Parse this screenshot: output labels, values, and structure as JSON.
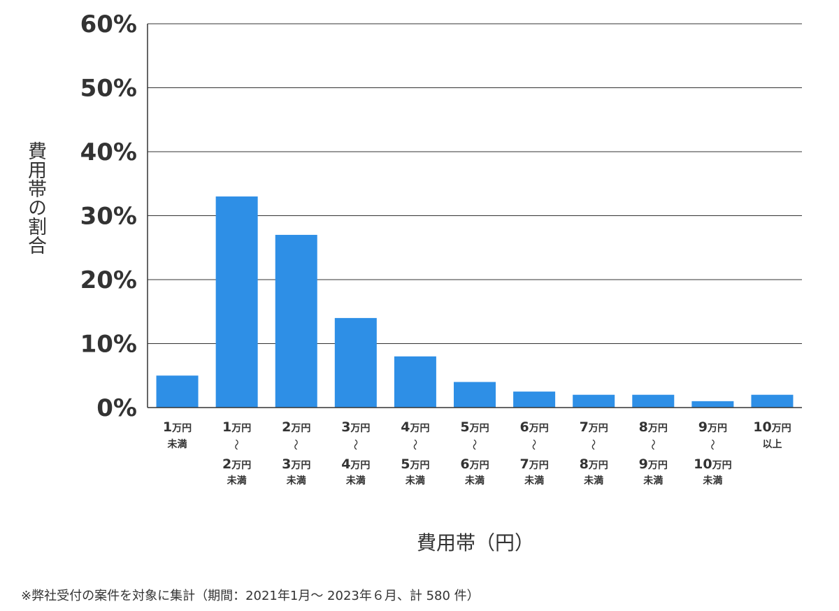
{
  "chart_data": {
    "type": "bar",
    "xlabel": "費用帯（円）",
    "ylabel": "費用帯の割合",
    "ylim": [
      0,
      60
    ],
    "y_ticks": [
      "0%",
      "10%",
      "20%",
      "30%",
      "40%",
      "50%",
      "60%"
    ],
    "y_tick_values": [
      0,
      10,
      20,
      30,
      40,
      50,
      60
    ],
    "grid": true,
    "bar_color": "#2e8fe6",
    "categories": [
      "1万円未満",
      "1万円〜2万円未満",
      "2万円〜3万円未満",
      "3万円〜4万円未満",
      "4万円〜5万円未満",
      "5万円〜6万円未満",
      "6万円〜7万円未満",
      "7万円〜8万円未満",
      "8万円〜9万円未満",
      "9万円〜10万円未満",
      "10万円以上"
    ],
    "category_labels": [
      {
        "from": "1",
        "from_unit": "万円",
        "to": "",
        "to_unit": "",
        "suffix": "未満"
      },
      {
        "from": "1",
        "from_unit": "万円",
        "to": "2",
        "to_unit": "万円",
        "suffix": "未満"
      },
      {
        "from": "2",
        "from_unit": "万円",
        "to": "3",
        "to_unit": "万円",
        "suffix": "未満"
      },
      {
        "from": "3",
        "from_unit": "万円",
        "to": "4",
        "to_unit": "万円",
        "suffix": "未満"
      },
      {
        "from": "4",
        "from_unit": "万円",
        "to": "5",
        "to_unit": "万円",
        "suffix": "未満"
      },
      {
        "from": "5",
        "from_unit": "万円",
        "to": "6",
        "to_unit": "万円",
        "suffix": "未満"
      },
      {
        "from": "6",
        "from_unit": "万円",
        "to": "7",
        "to_unit": "万円",
        "suffix": "未満"
      },
      {
        "from": "7",
        "from_unit": "万円",
        "to": "8",
        "to_unit": "万円",
        "suffix": "未満"
      },
      {
        "from": "8",
        "from_unit": "万円",
        "to": "9",
        "to_unit": "万円",
        "suffix": "未満"
      },
      {
        "from": "9",
        "from_unit": "万円",
        "to": "10",
        "to_unit": "万円",
        "suffix": "未満"
      },
      {
        "from": "10",
        "from_unit": "万円",
        "to": "",
        "to_unit": "",
        "suffix": "以上"
      }
    ],
    "range_separator": "〜",
    "values": [
      5,
      33,
      27,
      14,
      8,
      4,
      2.5,
      2,
      2,
      1,
      2
    ]
  },
  "footnote": "※弊社受付の案件を対象に集計（期間：2021年1月～ 2023年６月、計 580 件）"
}
